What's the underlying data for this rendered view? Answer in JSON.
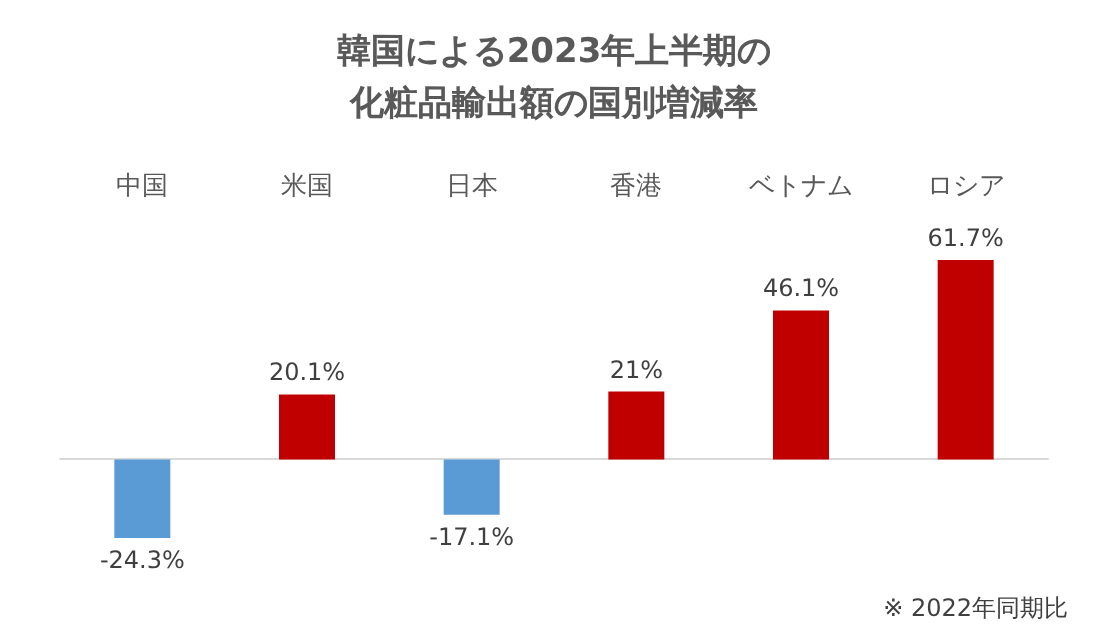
{
  "chart_data": {
    "type": "bar",
    "title": "韓国による2023年上半期の化粧品輸出額の国別増減率",
    "categories": [
      "中国",
      "米国",
      "日本",
      "香港",
      "ベトナム",
      "ロシア"
    ],
    "values": [
      -24.3,
      20.1,
      -17.1,
      21,
      46.1,
      61.7
    ],
    "colors": [
      "#5b9bd5",
      "#c00000",
      "#5b9bd5",
      "#c00000",
      "#c00000",
      "#c00000"
    ],
    "value_labels": [
      "-24.3%",
      "20.1%",
      "-17.1%",
      "21%",
      "46.1%",
      "61.7%"
    ],
    "annotations": [
      "※ 2022年同期比"
    ]
  }
}
